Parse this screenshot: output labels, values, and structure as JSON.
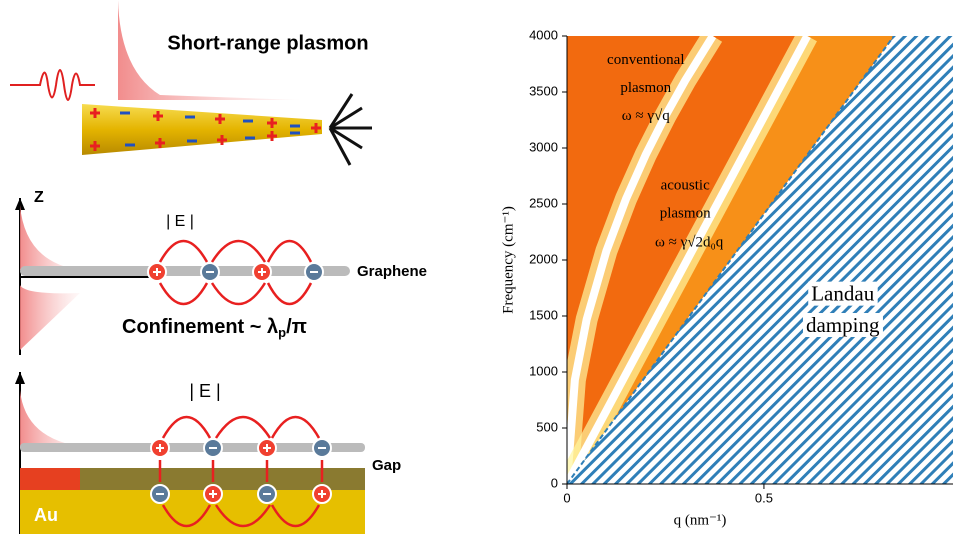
{
  "diagram": {
    "title": "Short-range plasmon",
    "z_axis": "Z",
    "field_top": "| E |",
    "graphene": "Graphene",
    "confinement": {
      "text": "Confinement ~ λ",
      "sub": "p",
      "tail": "/π"
    },
    "field_bottom": "| E |",
    "gap": "Gap",
    "metal": "Au"
  },
  "chart_data": {
    "type": "dispersion",
    "xlabel": "q (nm⁻¹)",
    "ylabel": "Frequency (cm⁻¹)",
    "xlim": [
      0,
      0.98
    ],
    "ylim": [
      0,
      4000
    ],
    "xticks": [
      0,
      0.5
    ],
    "yticks": [
      0,
      500,
      1000,
      1500,
      2000,
      2500,
      3000,
      3500,
      4000
    ],
    "background": "#f26a0f",
    "series": [
      {
        "color": "#fff7a0",
        "x": [
          0,
          0.02,
          0.05,
          0.1,
          0.15,
          0.2,
          0.25,
          0.3,
          0.37
        ],
        "values": [
          0,
          930,
          1470,
          2080,
          2547,
          2941,
          3288,
          3602,
          4000
        ]
      },
      {
        "color": "#fff7a0",
        "x": [
          0,
          0.61
        ],
        "values": [
          0,
          4000
        ]
      }
    ],
    "damping_edge": {
      "color": "#2f7fb8",
      "x": [
        0,
        0.83
      ],
      "values": [
        0,
        4000
      ]
    },
    "annotations": [
      {
        "text": "conventional",
        "x": 0.2,
        "y": 3780
      },
      {
        "text": "plasmon",
        "x": 0.2,
        "y": 3530
      },
      {
        "text": "ω ≈ γ√q",
        "x": 0.2,
        "y": 3280
      },
      {
        "text": "acoustic",
        "x": 0.3,
        "y": 2660
      },
      {
        "text": "plasmon",
        "x": 0.3,
        "y": 2410
      },
      {
        "text": "ω ≈ γ√2d₀q",
        "x": 0.31,
        "y": 2150
      },
      {
        "text": "Landau",
        "x": 0.7,
        "y": 1680
      },
      {
        "text": "damping",
        "x": 0.7,
        "y": 1400
      }
    ]
  }
}
